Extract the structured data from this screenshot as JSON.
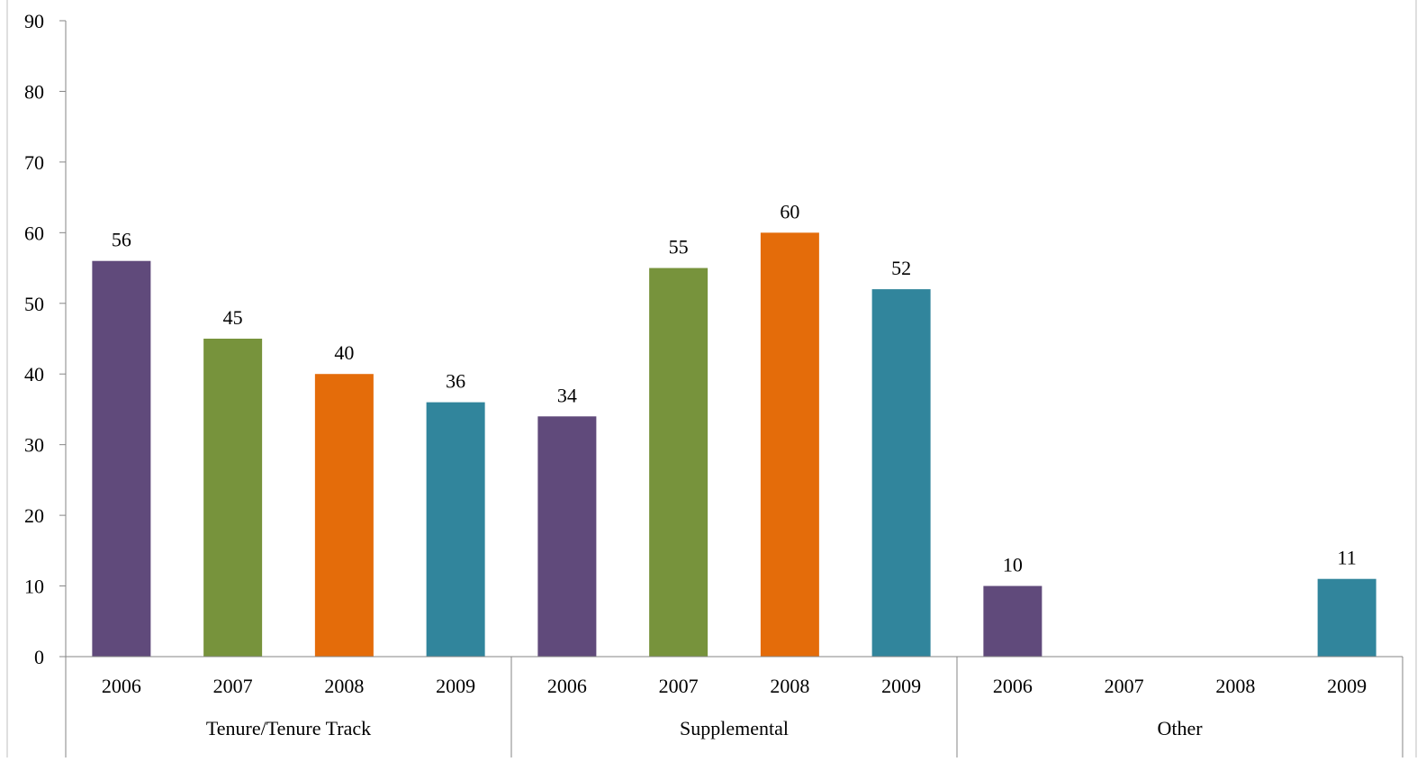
{
  "chart_data": {
    "type": "bar",
    "groups": [
      {
        "label": "Tenure/Tenure Track",
        "categories": [
          "2006",
          "2007",
          "2008",
          "2009"
        ]
      },
      {
        "label": "Supplemental",
        "categories": [
          "2006",
          "2007",
          "2008",
          "2009"
        ]
      },
      {
        "label": "Other",
        "categories": [
          "2006",
          "2007",
          "2008",
          "2009"
        ]
      }
    ],
    "values": [
      [
        56,
        45,
        40,
        36
      ],
      [
        34,
        55,
        60,
        52
      ],
      [
        10,
        null,
        null,
        11
      ]
    ],
    "data_labels": [
      [
        "56",
        "45",
        "40",
        "36"
      ],
      [
        "34",
        "55",
        "60",
        "52"
      ],
      [
        "10",
        "",
        "",
        "11"
      ]
    ],
    "year_colors": {
      "2006": "#604a7b",
      "2007": "#77933c",
      "2008": "#e46c0a",
      "2009": "#31859c"
    },
    "ylim": [
      0,
      90
    ],
    "yticks": [
      0,
      10,
      20,
      30,
      40,
      50,
      60,
      70,
      80,
      90
    ],
    "ytick_labels": [
      "0",
      "10",
      "20",
      "30",
      "40",
      "50",
      "60",
      "70",
      "80",
      "90"
    ],
    "title": "",
    "xlabel": "",
    "ylabel": "",
    "grid": false,
    "legend": "none"
  }
}
